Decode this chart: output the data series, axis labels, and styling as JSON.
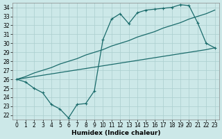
{
  "xlabel": "Humidex (Indice chaleur)",
  "bg_color": "#cce8e8",
  "grid_color": "#aacece",
  "line_color": "#1a6b6b",
  "xlim": [
    -0.5,
    23.5
  ],
  "ylim": [
    21.5,
    34.5
  ],
  "xticks": [
    0,
    1,
    2,
    3,
    4,
    5,
    6,
    7,
    8,
    9,
    10,
    11,
    12,
    13,
    14,
    15,
    16,
    17,
    18,
    19,
    20,
    21,
    22,
    23
  ],
  "yticks": [
    22,
    23,
    24,
    25,
    26,
    27,
    28,
    29,
    30,
    31,
    32,
    33,
    34
  ],
  "y_jagged": [
    26.0,
    25.7,
    25.0,
    24.5,
    23.2,
    22.7,
    21.7,
    23.2,
    23.3,
    24.7,
    30.4,
    32.7,
    33.3,
    32.2,
    33.4,
    33.7,
    33.8,
    33.9,
    34.0,
    34.3,
    34.2,
    32.3,
    30.0,
    29.5
  ],
  "y_diag_upper": [
    26.0,
    26.3,
    26.7,
    27.0,
    27.3,
    27.7,
    28.0,
    28.3,
    28.7,
    29.0,
    29.3,
    29.7,
    30.0,
    30.3,
    30.7,
    31.0,
    31.3,
    31.7,
    32.0,
    32.3,
    32.7,
    33.0,
    33.3,
    33.7
  ],
  "y_diag_lower": [
    26.0,
    26.15,
    26.3,
    26.45,
    26.6,
    26.75,
    26.9,
    27.05,
    27.2,
    27.35,
    27.5,
    27.65,
    27.8,
    27.95,
    28.1,
    28.25,
    28.4,
    28.55,
    28.7,
    28.85,
    29.0,
    29.15,
    29.3,
    29.5
  ]
}
